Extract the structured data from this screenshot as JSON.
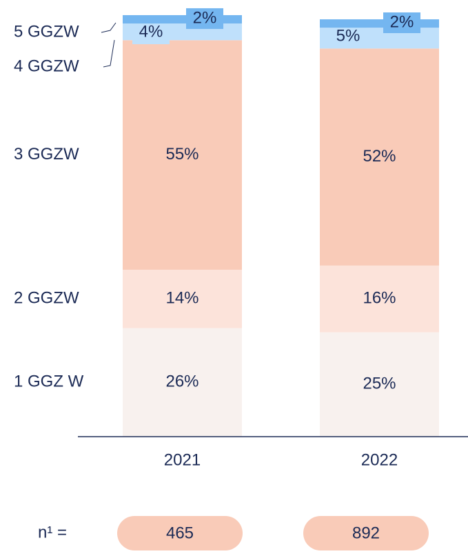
{
  "chart_data": {
    "type": "bar",
    "stacked": true,
    "categories": [
      "2021",
      "2022"
    ],
    "series": [
      {
        "name": "1 GGZ W",
        "color": "#f8f1ee",
        "values": [
          26,
          25
        ],
        "value_labels": [
          "26%",
          "25%"
        ]
      },
      {
        "name": "2 GGZW",
        "color": "#fce3da",
        "values": [
          14,
          16
        ],
        "value_labels": [
          "14%",
          "16%"
        ]
      },
      {
        "name": "3 GGZW",
        "color": "#f9cbb8",
        "values": [
          55,
          52
        ],
        "value_labels": [
          "55%",
          "52%"
        ]
      },
      {
        "name": "4 GGZW",
        "color": "#bfe0fb",
        "values": [
          4,
          5
        ],
        "value_labels": [
          "4%",
          "5%"
        ]
      },
      {
        "name": "5 GGZW",
        "color": "#74b6f0",
        "values": [
          2,
          2
        ],
        "value_labels": [
          "2%",
          "2%"
        ]
      }
    ],
    "n_label": "n¹ =",
    "n": [
      465,
      892
    ],
    "n_color": "#f9cbb8"
  }
}
